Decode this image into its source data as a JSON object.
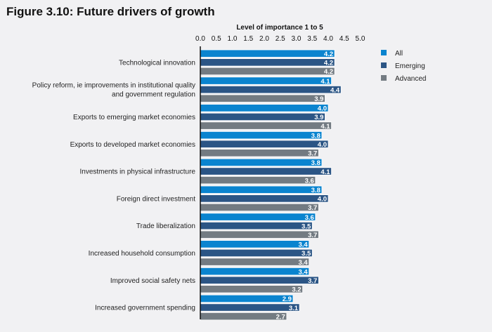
{
  "chart_data": {
    "type": "bar",
    "orientation": "horizontal",
    "title": "Figure 3.10: Future drivers of growth",
    "xlabel": "Level of importance 1 to 5",
    "xlim": [
      0,
      5
    ],
    "xticks": [
      "0.0",
      "0.5",
      "1.0",
      "1.5",
      "2.0",
      "2.5",
      "3.0",
      "3.5",
      "4.0",
      "4.5",
      "5.0"
    ],
    "xaxis_position": "top",
    "grid": false,
    "legend_position": "right",
    "categories": [
      "Technological innovation",
      "Policy reform, ie improvements in institutional quality\nand government regulation",
      "Exports to emerging market economies",
      "Exports to developed market economies",
      "Investments in physical infrastructure",
      "Foreign direct investment",
      "Trade liberalization",
      "Increased household consumption",
      "Improved social safety nets",
      "Increased government spending"
    ],
    "series": [
      {
        "name": "All",
        "color": "#0a84cf",
        "values": [
          4.2,
          4.1,
          4.0,
          3.8,
          3.8,
          3.8,
          3.6,
          3.4,
          3.4,
          2.9
        ]
      },
      {
        "name": "Emerging",
        "color": "#2b5585",
        "values": [
          4.2,
          4.4,
          3.9,
          4.0,
          4.1,
          4.0,
          3.5,
          3.5,
          3.7,
          3.1
        ]
      },
      {
        "name": "Advanced",
        "color": "#737b82",
        "values": [
          4.2,
          3.9,
          4.1,
          3.7,
          3.6,
          3.7,
          3.7,
          3.4,
          3.2,
          2.7
        ]
      }
    ]
  }
}
